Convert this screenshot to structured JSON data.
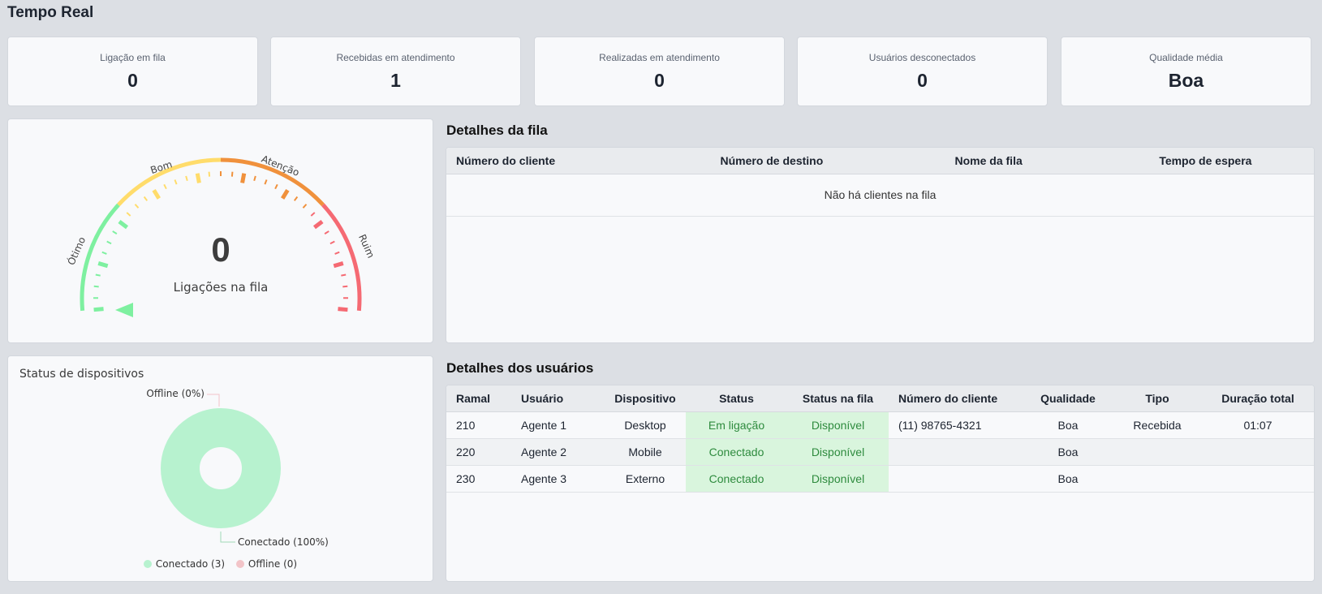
{
  "page": {
    "title": "Tempo Real"
  },
  "kpis": [
    {
      "label": "Ligação em fila",
      "value": "0"
    },
    {
      "label": "Recebidas em atendimento",
      "value": "1"
    },
    {
      "label": "Realizadas em atendimento",
      "value": "0"
    },
    {
      "label": "Usuários desconectados",
      "value": "0"
    },
    {
      "label": "Qualidade média",
      "value": "Boa"
    }
  ],
  "gauge": {
    "value": "0",
    "label": "Ligações na fila",
    "zones": [
      "Ótimo",
      "Bom",
      "Atenção",
      "Ruim"
    ],
    "zone_colors": [
      "#7ef0a0",
      "#ffdc6b",
      "#f0913c",
      "#f56a73"
    ],
    "needle_color": "#7ef0a0"
  },
  "queue": {
    "title": "Detalhes da fila",
    "columns": [
      "Número do cliente",
      "Número de destino",
      "Nome da fila",
      "Tempo de espera"
    ],
    "empty_message": "Não há clientes na fila"
  },
  "devices": {
    "title": "Status de dispositivos",
    "offline_label": "Offline (0%)",
    "connected_label": "Conectado (100%)",
    "legend": [
      {
        "label": "Conectado (3)",
        "color": "#b7f2cf"
      },
      {
        "label": "Offline (0)",
        "color": "#f2c4c8"
      }
    ]
  },
  "chart_data": {
    "type": "pie",
    "categories": [
      "Conectado",
      "Offline"
    ],
    "values": [
      3,
      0
    ],
    "colors": [
      "#b7f2cf",
      "#f2c4c8"
    ],
    "legend_position": "bottom"
  },
  "users": {
    "title": "Detalhes dos usuários",
    "columns": [
      "Ramal",
      "Usuário",
      "Dispositivo",
      "Status",
      "Status na fila",
      "Número do cliente",
      "Qualidade",
      "Tipo",
      "Duração total"
    ],
    "rows": [
      {
        "ramal": "210",
        "usuario": "Agente 1",
        "dispositivo": "Desktop",
        "status": "Em ligação",
        "status_fila": "Disponível",
        "numero": "(11) 98765-4321",
        "qualidade": "Boa",
        "tipo": "Recebida",
        "duracao": "01:07"
      },
      {
        "ramal": "220",
        "usuario": "Agente 2",
        "dispositivo": "Mobile",
        "status": "Conectado",
        "status_fila": "Disponível",
        "numero": "",
        "qualidade": "Boa",
        "tipo": "",
        "duracao": ""
      },
      {
        "ramal": "230",
        "usuario": "Agente 3",
        "dispositivo": "Externo",
        "status": "Conectado",
        "status_fila": "Disponível",
        "numero": "",
        "qualidade": "Boa",
        "tipo": "",
        "duracao": ""
      }
    ]
  }
}
